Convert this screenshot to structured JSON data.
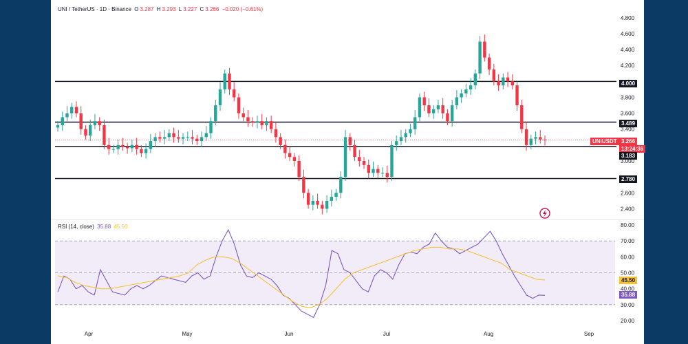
{
  "header": {
    "symbol": "UNI / TetherUS · 1D · Binance",
    "o_label": "O",
    "o_value": "3.287",
    "h_label": "H",
    "h_value": "3.293",
    "l_label": "L",
    "l_value": "3.227",
    "c_label": "C",
    "c_value": "3.266",
    "change": "−0.020 (−0.61%)"
  },
  "rsi_header": {
    "label": "RSI (14, close)",
    "rsi_value": "35.88",
    "ma_value": "45.50"
  },
  "tags": {
    "level_4": "4.000",
    "level_3489": "3.489",
    "symbol_tag": "UNIUSDT",
    "price": "3.266",
    "countdown": "13:24:36",
    "level_3183": "3.183",
    "level_278": "2.780",
    "rsi_ma": "45.50",
    "rsi": "35.88"
  },
  "colors": {
    "up": "#26a69a",
    "down": "#f23645",
    "rsi_line": "#7e57c2",
    "rsi_ma": "#f5c23a",
    "background": "#0b3a64"
  },
  "chart_data": [
    {
      "type": "candlestick",
      "title": "UNI / TetherUS · 1D · Binance",
      "y_ticks": [
        "4.800",
        "4.600",
        "4.400",
        "4.200",
        "3.800",
        "3.600",
        "3.400",
        "3.000",
        "2.600",
        "2.400"
      ],
      "x_ticks": [
        "Apr",
        "May",
        "Jun",
        "Jul",
        "Aug",
        "Sep"
      ],
      "ylim": [
        2.3,
        4.85
      ],
      "horizontal_levels": [
        4.0,
        3.489,
        3.183,
        2.78
      ],
      "last_price": 3.266,
      "close_series": [
        3.45,
        3.55,
        3.6,
        3.68,
        3.6,
        3.4,
        3.32,
        3.45,
        3.5,
        3.45,
        3.2,
        3.15,
        3.15,
        3.2,
        3.18,
        3.16,
        3.2,
        3.15,
        3.1,
        3.15,
        3.25,
        3.3,
        3.28,
        3.3,
        3.35,
        3.3,
        3.28,
        3.3,
        3.3,
        3.28,
        3.25,
        3.3,
        3.35,
        3.5,
        3.7,
        3.9,
        4.1,
        3.9,
        3.8,
        3.6,
        3.55,
        3.5,
        3.48,
        3.5,
        3.45,
        3.5,
        3.4,
        3.3,
        3.2,
        3.1,
        3.05,
        3.0,
        2.8,
        2.6,
        2.45,
        2.5,
        2.45,
        2.4,
        2.5,
        2.55,
        2.6,
        2.8,
        3.3,
        3.2,
        3.05,
        3.0,
        2.95,
        2.85,
        2.9,
        2.85,
        2.85,
        2.8,
        3.2,
        3.25,
        3.3,
        3.35,
        3.4,
        3.55,
        3.8,
        3.7,
        3.6,
        3.65,
        3.7,
        3.6,
        3.5,
        3.7,
        3.8,
        3.85,
        3.9,
        3.95,
        4.1,
        4.5,
        4.3,
        4.15,
        4.0,
        3.95,
        4.05,
        4.0,
        3.95,
        3.7,
        3.4,
        3.2,
        3.28,
        3.3,
        3.27,
        3.266
      ]
    },
    {
      "type": "line",
      "title": "RSI (14, close)",
      "y_ticks": [
        "80.00",
        "70.00",
        "60.00",
        "50.00",
        "40.00",
        "30.00",
        "20.00"
      ],
      "ylim": [
        20,
        80
      ],
      "band": [
        30,
        70
      ],
      "series": [
        {
          "name": "RSI",
          "values": [
            38,
            48,
            46,
            40,
            42,
            38,
            36,
            52,
            45,
            38,
            37,
            36,
            40,
            42,
            40,
            42,
            45,
            48,
            47,
            46,
            45,
            44,
            48,
            50,
            46,
            48,
            60,
            70,
            77,
            68,
            55,
            48,
            47,
            50,
            48,
            46,
            42,
            36,
            34,
            30,
            26,
            24,
            22,
            30,
            42,
            64,
            62,
            52,
            50,
            45,
            40,
            38,
            48,
            52,
            50,
            46,
            55,
            62,
            63,
            62,
            66,
            68,
            75,
            70,
            66,
            65,
            62,
            64,
            66,
            68,
            72,
            76,
            70,
            62,
            55,
            48,
            42,
            36,
            34,
            36,
            35.88
          ]
        },
        {
          "name": "MA",
          "values": [
            48,
            47,
            44,
            42,
            41,
            40,
            40,
            41,
            42,
            43,
            44,
            45,
            46,
            47,
            48,
            50,
            55,
            58,
            60,
            60,
            59,
            56,
            52,
            48,
            44,
            40,
            36,
            32,
            29,
            28,
            30,
            34,
            40,
            46,
            50,
            52,
            54,
            56,
            58,
            60,
            62,
            64,
            65,
            66,
            66,
            65,
            65,
            64,
            62,
            60,
            58,
            56,
            52,
            50,
            48,
            46,
            45.5
          ]
        }
      ]
    }
  ]
}
